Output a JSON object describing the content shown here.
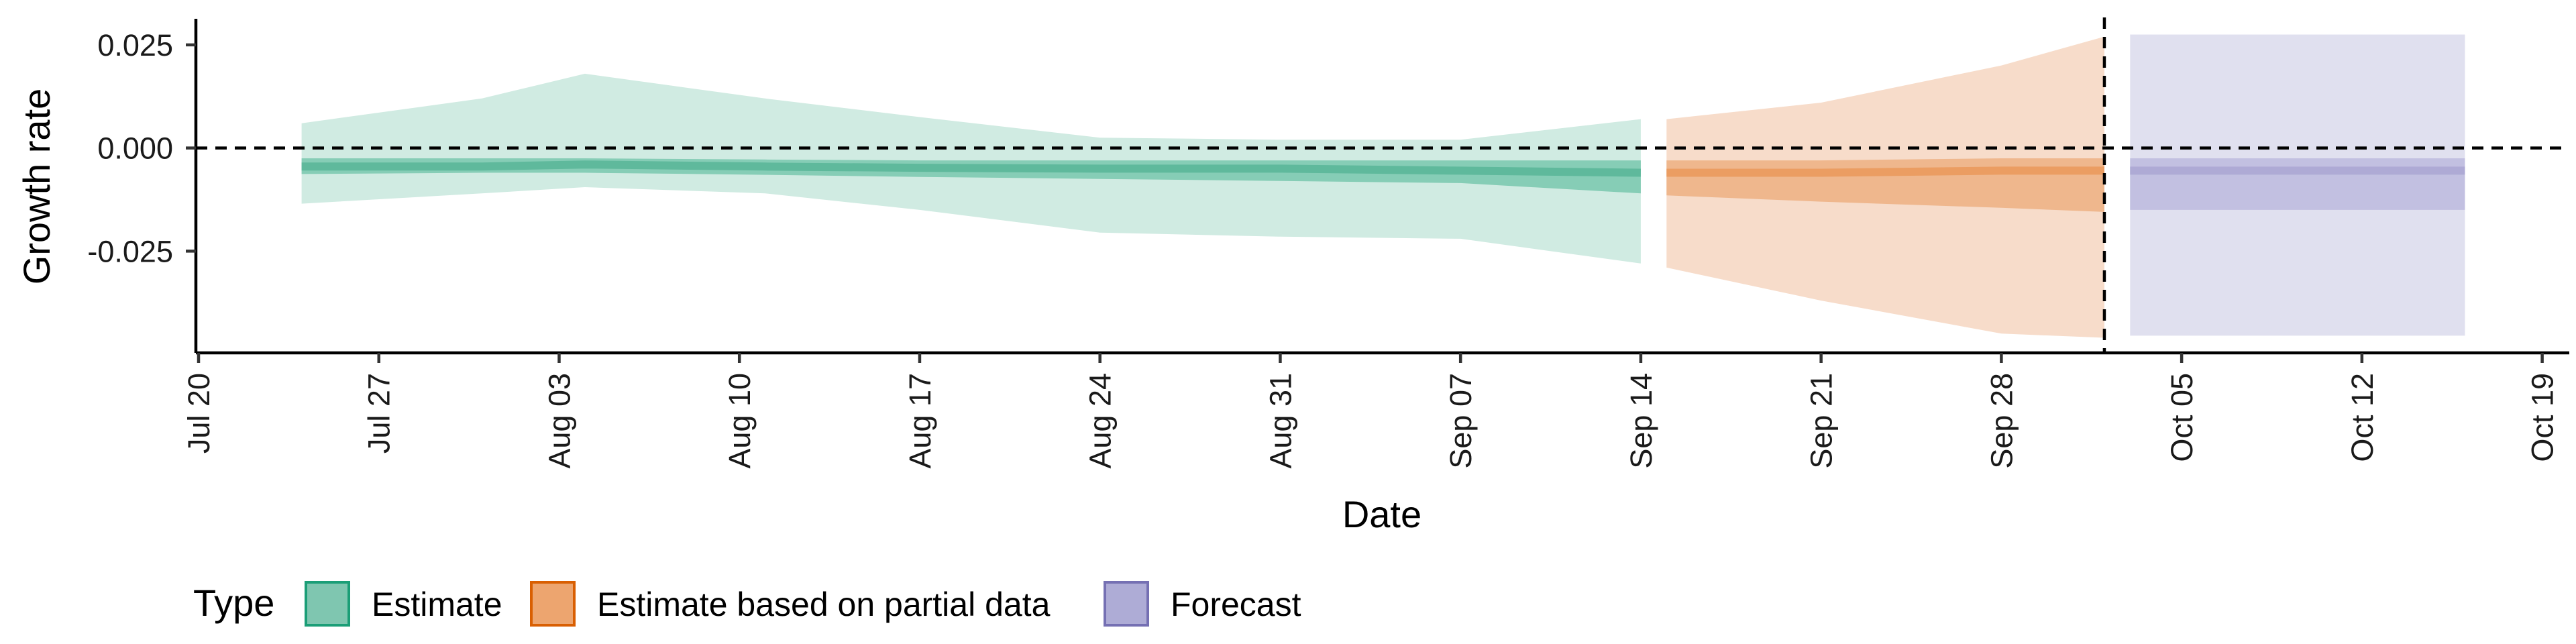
{
  "chart_data": {
    "type": "area",
    "xlabel": "Date",
    "ylabel": "Growth rate",
    "x_axis_type": "date",
    "xlim": [
      "2020-07-20",
      "2020-10-20"
    ],
    "ylim": [
      -0.0495,
      0.031
    ],
    "x_ticks": [
      "2020-07-20",
      "2020-07-27",
      "2020-08-03",
      "2020-08-10",
      "2020-08-17",
      "2020-08-24",
      "2020-08-31",
      "2020-09-07",
      "2020-09-14",
      "2020-09-21",
      "2020-09-28",
      "2020-10-05",
      "2020-10-12",
      "2020-10-19"
    ],
    "x_tick_labels": [
      "Jul 20",
      "Jul 27",
      "Aug 03",
      "Aug 10",
      "Aug 17",
      "Aug 24",
      "Aug 31",
      "Sep 07",
      "Sep 14",
      "Sep 21",
      "Sep 28",
      "Oct 05",
      "Oct 12",
      "Oct 19"
    ],
    "y_ticks": [
      0.025,
      0.0,
      -0.025
    ],
    "y_tick_labels": [
      "0.025",
      "0.000",
      "-0.025"
    ],
    "grid": false,
    "reference_lines": [
      {
        "axis": "y",
        "value": 0.0,
        "style": "dashed"
      },
      {
        "axis": "x",
        "value": "2020-10-02",
        "style": "dashed"
      }
    ],
    "legend": {
      "title": "Type",
      "position": "bottom-left",
      "entries": [
        {
          "label": "Estimate",
          "fill": "#7fc6b0",
          "stroke": "#1b9e77"
        },
        {
          "label": "Estimate based on partial data",
          "fill": "#eda56f",
          "stroke": "#d95f02"
        },
        {
          "label": "Forecast",
          "fill": "#aeacd6",
          "stroke": "#7570b3"
        }
      ]
    },
    "series": [
      {
        "name": "Estimate",
        "colors": {
          "outer": "#d0ebe2",
          "inner": "#86cdb6",
          "median": "#5fb99c"
        },
        "points": [
          {
            "x": "2020-07-24",
            "lower90": -0.0135,
            "lower50": -0.0063,
            "median": -0.0045,
            "upper50": -0.0025,
            "upper90": 0.006
          },
          {
            "x": "2020-07-31",
            "lower90": -0.011,
            "lower50": -0.006,
            "median": -0.0045,
            "upper50": -0.0025,
            "upper90": 0.012
          },
          {
            "x": "2020-08-04",
            "lower90": -0.0095,
            "lower50": -0.006,
            "median": -0.004,
            "upper50": -0.0025,
            "upper90": 0.018
          },
          {
            "x": "2020-08-11",
            "lower90": -0.011,
            "lower50": -0.0065,
            "median": -0.0045,
            "upper50": -0.0028,
            "upper90": 0.012
          },
          {
            "x": "2020-08-17",
            "lower90": -0.015,
            "lower50": -0.007,
            "median": -0.0048,
            "upper50": -0.003,
            "upper90": 0.0075
          },
          {
            "x": "2020-08-24",
            "lower90": -0.0205,
            "lower50": -0.0075,
            "median": -0.005,
            "upper50": -0.003,
            "upper90": 0.0025
          },
          {
            "x": "2020-08-31",
            "lower90": -0.0215,
            "lower50": -0.008,
            "median": -0.005,
            "upper50": -0.003,
            "upper90": 0.002
          },
          {
            "x": "2020-09-07",
            "lower90": -0.022,
            "lower50": -0.0085,
            "median": -0.0055,
            "upper50": -0.003,
            "upper90": 0.002
          },
          {
            "x": "2020-09-14",
            "lower90": -0.028,
            "lower50": -0.011,
            "median": -0.006,
            "upper50": -0.003,
            "upper90": 0.007
          }
        ]
      },
      {
        "name": "Estimate based on partial data",
        "colors": {
          "outer": "#f7dcca",
          "inner": "#efb78d",
          "median": "#eb9d62"
        },
        "points": [
          {
            "x": "2020-09-15",
            "lower90": -0.029,
            "lower50": -0.0115,
            "median": -0.006,
            "upper50": -0.003,
            "upper90": 0.007
          },
          {
            "x": "2020-09-21",
            "lower90": -0.037,
            "lower50": -0.013,
            "median": -0.006,
            "upper50": -0.003,
            "upper90": 0.011
          },
          {
            "x": "2020-09-28",
            "lower90": -0.045,
            "lower50": -0.0145,
            "median": -0.0055,
            "upper50": -0.0025,
            "upper90": 0.02
          },
          {
            "x": "2020-10-02",
            "lower90": -0.046,
            "lower50": -0.0155,
            "median": -0.0055,
            "upper50": -0.0025,
            "upper90": 0.027
          }
        ]
      },
      {
        "name": "Forecast",
        "colors": {
          "outer": "#e0e0ef",
          "inner": "#c2c0e1",
          "median": "#aeaad5"
        },
        "points": [
          {
            "x": "2020-10-03",
            "lower90": -0.0455,
            "lower50": -0.015,
            "median": -0.0055,
            "upper50": -0.0025,
            "upper90": 0.0275
          },
          {
            "x": "2020-10-16",
            "lower90": -0.0455,
            "lower50": -0.015,
            "median": -0.0055,
            "upper50": -0.0025,
            "upper90": 0.0275
          }
        ]
      }
    ]
  }
}
